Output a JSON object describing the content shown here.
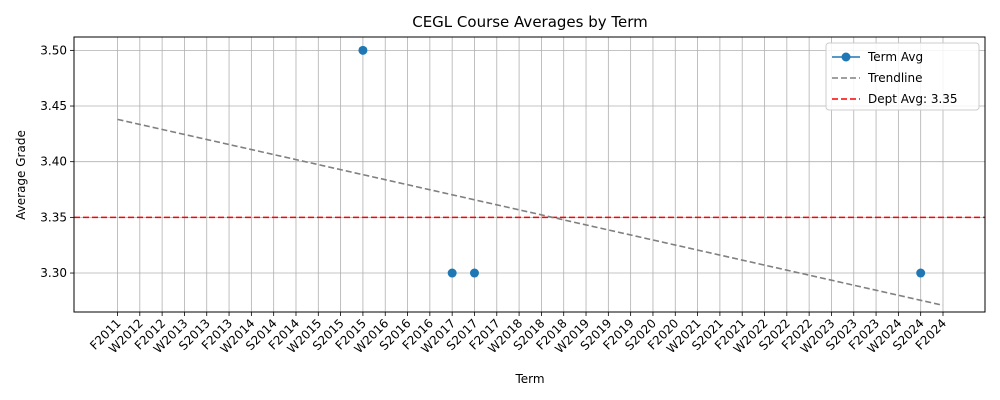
{
  "chart_data": {
    "type": "line",
    "title": "CEGL Course Averages by Term",
    "xlabel": "Term",
    "ylabel": "Average Grade",
    "categories": [
      "F2011",
      "W2012",
      "F2012",
      "W2013",
      "S2013",
      "F2013",
      "W2014",
      "S2014",
      "F2014",
      "W2015",
      "S2015",
      "F2015",
      "W2016",
      "S2016",
      "F2016",
      "W2017",
      "S2017",
      "F2017",
      "W2018",
      "S2018",
      "F2018",
      "W2019",
      "S2019",
      "F2019",
      "S2020",
      "F2020",
      "W2021",
      "S2021",
      "F2021",
      "W2022",
      "S2022",
      "F2022",
      "W2023",
      "S2023",
      "F2023",
      "W2024",
      "S2024",
      "F2024"
    ],
    "ylim": [
      3.265,
      3.512
    ],
    "yticks": [
      3.3,
      3.35,
      3.4,
      3.45,
      3.5
    ],
    "ytick_labels": [
      "3.30",
      "3.35",
      "3.40",
      "3.45",
      "3.50"
    ],
    "grid": true,
    "legend_position": "top-right",
    "series": [
      {
        "name": "Term Avg",
        "color": "#1f77b4",
        "style": "markers",
        "points": [
          {
            "x": "F2015",
            "y": 3.5
          },
          {
            "x": "W2017",
            "y": 3.3
          },
          {
            "x": "S2017",
            "y": 3.3
          },
          {
            "x": "S2024",
            "y": 3.3
          }
        ]
      },
      {
        "name": "Trendline",
        "color": "#808080",
        "style": "dashed",
        "points": [
          {
            "x": "F2011",
            "y": 3.438
          },
          {
            "x": "F2024",
            "y": 3.271
          }
        ]
      }
    ],
    "reference_lines": [
      {
        "name": "Dept Avg: 3.35",
        "y": 3.35,
        "color": "#ff0000",
        "style": "dashed"
      }
    ]
  }
}
